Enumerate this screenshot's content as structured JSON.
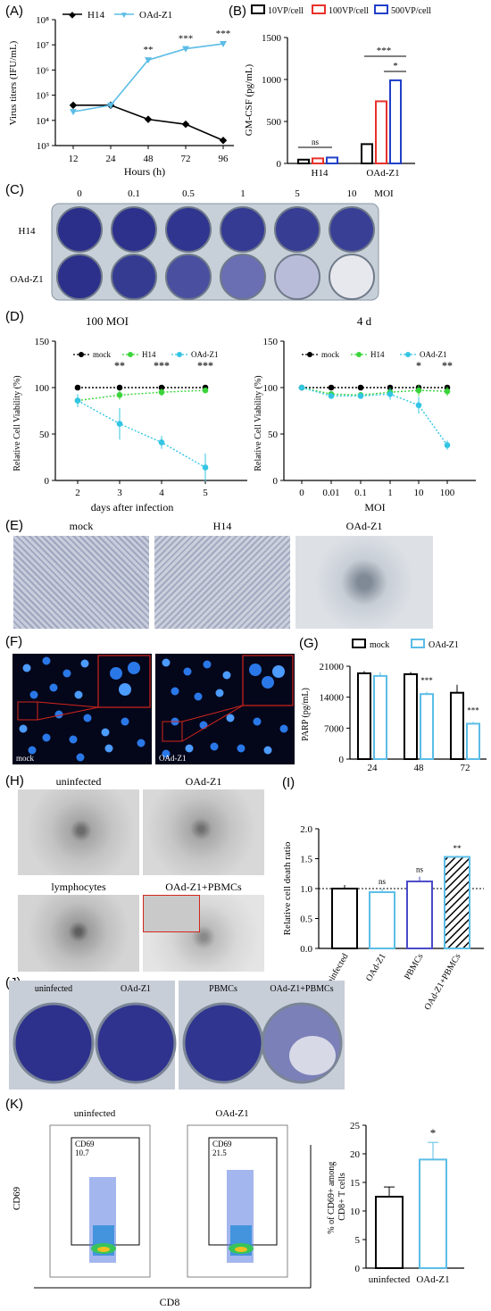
{
  "panels": {
    "A": "(A)",
    "B": "(B)",
    "C": "(C)",
    "D": "(D)",
    "E": "(E)",
    "F": "(F)",
    "G": "(G)",
    "H": "(H)",
    "I": "(I)",
    "J": "(J)",
    "K": "(K)"
  },
  "panelA": {
    "ylabel": "Virus titers (IFU/mL)",
    "xlabel": "Hours (h)",
    "yticks": [
      "10³",
      "10⁴",
      "10⁵",
      "10⁶",
      "10⁷",
      "10⁸"
    ],
    "xticks": [
      "12",
      "24",
      "48",
      "72",
      "96"
    ],
    "colors": {
      "H14": "#000000",
      "OAd-Z1": "#5bbde6"
    }
  },
  "panelB": {
    "ylabel": "GM-CSF (pg/mL)",
    "legend": [
      "10VP/cell",
      "100VP/cell",
      "500VP/cell"
    ],
    "colors": [
      "#000000",
      "#e8312a",
      "#2040c8"
    ],
    "groups": [
      "H14",
      "OAd-Z1"
    ],
    "yticks": [
      "0",
      "500",
      "1000",
      "1500"
    ],
    "sig_ns": "ns",
    "sig_3": "***",
    "sig_1": "*"
  },
  "panelC": {
    "mois": [
      "0",
      "0.1",
      "0.5",
      "1",
      "5",
      "10",
      "MOI"
    ],
    "rows": [
      "H14",
      "OAd-Z1"
    ]
  },
  "panelD": {
    "left_title": "100 MOI",
    "right_title": "4 d",
    "ylabel": "Relative Cell Viability (%)",
    "left_xlabel": "days after infection",
    "right_xlabel": "MOI",
    "legend": [
      "mock",
      "H14",
      "OAd-Z1"
    ],
    "colors": {
      "mock": "#000000",
      "H14": "#3ad43a",
      "OAd-Z1": "#33c5e3"
    },
    "yticks": [
      "0",
      "50",
      "100",
      "150"
    ],
    "left_xticks": [
      "2",
      "3",
      "4",
      "5"
    ],
    "right_xticks": [
      "0",
      "0.01",
      "0.1",
      "1",
      "10",
      "100"
    ],
    "left_sig": [
      "**",
      "***",
      "***"
    ],
    "right_sig": [
      "*",
      "**"
    ]
  },
  "panelE": {
    "labels": [
      "mock",
      "H14",
      "OAd-Z1"
    ]
  },
  "panelF": {
    "labels": [
      "mock",
      "OAd-Z1"
    ]
  },
  "panelG": {
    "ylabel": "PARP (pg/mL)",
    "legend": [
      "mock",
      "OAd-Z1"
    ],
    "colors": {
      "mock": "#000000",
      "OAd-Z1": "#5bbde6"
    },
    "xticks": [
      "24",
      "48",
      "72"
    ],
    "yticks": [
      "0",
      "7000",
      "14000",
      "21000"
    ],
    "sig": [
      "***",
      "***"
    ]
  },
  "panelH": {
    "labels": [
      "uninfected",
      "OAd-Z1",
      "lymphocytes",
      "OAd-Z1+PBMCs"
    ]
  },
  "panelI": {
    "ylabel": "Relative cell death ratio",
    "yticks": [
      "0.0",
      "0.5",
      "1.0",
      "1.5",
      "2.0"
    ],
    "categories": [
      "uninfected",
      "OAd-Z1",
      "PBMCs",
      "OAd-Z1+PBMCs"
    ],
    "sig": [
      "ns",
      "ns",
      "**"
    ],
    "colors": [
      "#000000",
      "#5bbde6",
      "#4a4ac8",
      "#000000"
    ]
  },
  "panelJ": {
    "labels": [
      "uninfected",
      "OAd-Z1",
      "PBMCs",
      "OAd-Z1+PBMCs"
    ]
  },
  "panelK": {
    "flow_titles": [
      "uninfected",
      "OAd-Z1"
    ],
    "gate_label": "CD69",
    "gate_values": [
      "10.7",
      "21.5"
    ],
    "ylabel_flow": "CD69",
    "xlabel_flow": "CD8",
    "bar_ylabel": "% of CD69+ among CD8+ T cells",
    "bar_categories": [
      "uninfected",
      "OAd-Z1"
    ],
    "yticks": [
      "0",
      "5",
      "10",
      "15",
      "20",
      "25"
    ],
    "sig": "*",
    "colors": [
      "#000000",
      "#5bbde6"
    ]
  },
  "chart_data": [
    {
      "id": "A",
      "type": "line",
      "title": "",
      "xlabel": "Hours (h)",
      "ylabel": "Virus titers (IFU/mL)",
      "yscale": "log",
      "ylim": [
        1000,
        100000000
      ],
      "x": [
        12,
        24,
        48,
        72,
        96
      ],
      "series": [
        {
          "name": "H14",
          "values": [
            40000,
            40000,
            11000,
            7000,
            1600
          ]
        },
        {
          "name": "OAd-Z1",
          "values": [
            22000,
            40000,
            2500000,
            7000000,
            11000000
          ]
        }
      ],
      "annotations": [
        "**",
        "***",
        "***"
      ]
    },
    {
      "id": "B",
      "type": "bar",
      "ylabel": "GM-CSF (pg/mL)",
      "ylim": [
        0,
        1500
      ],
      "categories": [
        "H14",
        "OAd-Z1"
      ],
      "series": [
        {
          "name": "10VP/cell",
          "values": [
            45,
            230
          ]
        },
        {
          "name": "100VP/cell",
          "values": [
            60,
            740
          ]
        },
        {
          "name": "500VP/cell",
          "values": [
            70,
            990
          ]
        }
      ]
    },
    {
      "id": "D-left",
      "type": "line",
      "title": "100 MOI",
      "xlabel": "days after infection",
      "ylabel": "Relative Cell Viability (%)",
      "ylim": [
        0,
        150
      ],
      "x": [
        2,
        3,
        4,
        5
      ],
      "series": [
        {
          "name": "mock",
          "values": [
            100,
            100,
            100,
            100
          ]
        },
        {
          "name": "H14",
          "values": [
            86,
            92,
            95,
            97
          ]
        },
        {
          "name": "OAd-Z1",
          "values": [
            86,
            61,
            41,
            14
          ]
        }
      ]
    },
    {
      "id": "D-right",
      "type": "line",
      "title": "4 d",
      "xlabel": "MOI",
      "ylabel": "Relative Cell Viability (%)",
      "ylim": [
        0,
        150
      ],
      "x": [
        "0",
        "0.01",
        "0.1",
        "1",
        "10",
        "100"
      ],
      "series": [
        {
          "name": "mock",
          "values": [
            100,
            100,
            100,
            100,
            100,
            100
          ]
        },
        {
          "name": "H14",
          "values": [
            100,
            93,
            92,
            95,
            97,
            96
          ]
        },
        {
          "name": "OAd-Z1",
          "values": [
            100,
            91,
            91,
            93,
            81,
            38
          ]
        }
      ]
    },
    {
      "id": "G",
      "type": "bar",
      "ylabel": "PARP (pg/mL)",
      "ylim": [
        0,
        21000
      ],
      "categories": [
        "24",
        "48",
        "72"
      ],
      "series": [
        {
          "name": "mock",
          "values": [
            19400,
            19200,
            15000
          ]
        },
        {
          "name": "OAd-Z1",
          "values": [
            18800,
            14700,
            8000
          ]
        }
      ]
    },
    {
      "id": "I",
      "type": "bar",
      "ylabel": "Relative cell death ratio",
      "ylim": [
        0,
        2.0
      ],
      "categories": [
        "uninfected",
        "OAd-Z1",
        "PBMCs",
        "OAd-Z1+PBMCs"
      ],
      "values": [
        1.0,
        0.94,
        1.12,
        1.53
      ]
    },
    {
      "id": "K",
      "type": "bar",
      "ylabel": "% of CD69+ among CD8+ T cells",
      "ylim": [
        0,
        25
      ],
      "categories": [
        "uninfected",
        "OAd-Z1"
      ],
      "values": [
        12.5,
        19.0
      ]
    }
  ]
}
